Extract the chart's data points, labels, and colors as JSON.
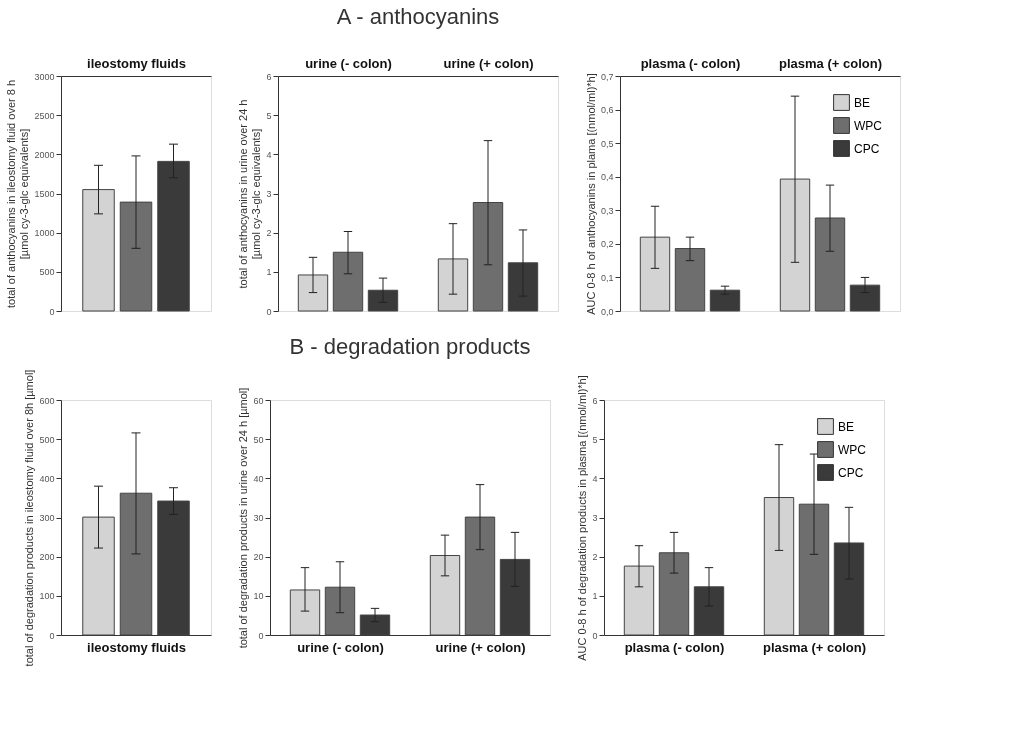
{
  "chart_data": [
    {
      "type": "bar",
      "ylabel": "total of anthocyanins in ileostomy fluid over 8 h\n[µmol cy-3-glc equivalents]",
      "categories": [
        "ileostomy fluids"
      ],
      "ylim": [
        0,
        3000
      ],
      "yticks": [
        0,
        500,
        1000,
        1500,
        2000,
        2500,
        3000
      ],
      "grid": false,
      "legend": false,
      "series": [
        {
          "color": "#d3d3d3",
          "values": [
            1550
          ],
          "errors": [
            [
              1240,
              1860
            ]
          ]
        },
        {
          "color": "#6e6e6e",
          "values": [
            1390
          ],
          "errors": [
            [
              800,
              1980
            ]
          ]
        },
        {
          "color": "#3a3a3a",
          "values": [
            1910
          ],
          "errors": [
            [
              1700,
              2130
            ]
          ]
        }
      ]
    },
    {
      "type": "bar",
      "title": "A - anthocyanins",
      "ylabel": "total of anthocyanins in urine over 24 h\n[µmol cy-3-glc equivalents]",
      "categories": [
        "urine (- colon)",
        "urine (+ colon)"
      ],
      "ylim": [
        0,
        6
      ],
      "yticks": [
        0,
        1,
        2,
        3,
        4,
        5,
        6
      ],
      "grid": false,
      "legend": false,
      "series": [
        {
          "color": "#d3d3d3",
          "values": [
            0.92,
            1.33
          ],
          "errors": [
            [
              0.47,
              1.37
            ],
            [
              0.43,
              2.23
            ]
          ]
        },
        {
          "color": "#6e6e6e",
          "values": [
            1.5,
            2.77
          ],
          "errors": [
            [
              0.95,
              2.03
            ],
            [
              1.18,
              4.35
            ]
          ]
        },
        {
          "color": "#3a3a3a",
          "values": [
            0.53,
            1.23
          ],
          "errors": [
            [
              0.22,
              0.84
            ],
            [
              0.38,
              2.07
            ]
          ]
        }
      ]
    },
    {
      "type": "bar",
      "ylabel": "AUC 0-8 h of anthocyanins in plama [(nmol/ml)*h]",
      "categories": [
        "plasma (- colon)",
        "plasma (+ colon)"
      ],
      "ylim": [
        0,
        0.7
      ],
      "yticks": [
        {
          "value": 0,
          "label": "0,0"
        },
        {
          "value": 0.1,
          "label": "0,1"
        },
        {
          "value": 0.2,
          "label": "0,2"
        },
        {
          "value": 0.3,
          "label": "0,3"
        },
        {
          "value": 0.4,
          "label": "0,4"
        },
        {
          "value": 0.5,
          "label": "0,5"
        },
        {
          "value": 0.6,
          "label": "0,6"
        },
        {
          "value": 0.7,
          "label": "0,7"
        }
      ],
      "grid": false,
      "legend": "top right",
      "series": [
        {
          "name": "BE",
          "color": "#d3d3d3",
          "values": [
            0.22,
            0.393
          ],
          "errors": [
            [
              0.127,
              0.312
            ],
            [
              0.145,
              0.64
            ]
          ]
        },
        {
          "name": "WPC",
          "color": "#6e6e6e",
          "values": [
            0.186,
            0.277
          ],
          "errors": [
            [
              0.15,
              0.22
            ],
            [
              0.178,
              0.375
            ]
          ]
        },
        {
          "name": "CPC",
          "color": "#3a3a3a",
          "values": [
            0.062,
            0.077
          ],
          "errors": [
            [
              0.05,
              0.074
            ],
            [
              0.055,
              0.1
            ]
          ]
        }
      ]
    },
    {
      "type": "bar",
      "ylabel": "total of degradation products in ileostomy fluid over 8h [µmol]",
      "categories": [
        "ileostomy fluids"
      ],
      "ylim": [
        0,
        600
      ],
      "yticks": [
        0,
        100,
        200,
        300,
        400,
        500,
        600
      ],
      "grid": false,
      "legend": false,
      "series": [
        {
          "color": "#d3d3d3",
          "values": [
            301
          ],
          "errors": [
            [
              222,
              380
            ]
          ]
        },
        {
          "color": "#6e6e6e",
          "values": [
            362
          ],
          "errors": [
            [
              207,
              516
            ]
          ]
        },
        {
          "color": "#3a3a3a",
          "values": [
            342
          ],
          "errors": [
            [
              308,
              376
            ]
          ]
        }
      ]
    },
    {
      "type": "bar",
      "title": "B - degradation products",
      "ylabel": "total of degradation products in urine over 24 h [µmol]",
      "categories": [
        "urine (- colon)",
        "urine (+ colon)"
      ],
      "ylim": [
        0,
        60
      ],
      "yticks": [
        0,
        10,
        20,
        30,
        40,
        50,
        60
      ],
      "grid": false,
      "legend": false,
      "series": [
        {
          "color": "#d3d3d3",
          "values": [
            11.5,
            20.3
          ],
          "errors": [
            [
              6.1,
              17.2
            ],
            [
              15.1,
              25.5
            ]
          ]
        },
        {
          "color": "#6e6e6e",
          "values": [
            12.2,
            30.1
          ],
          "errors": [
            [
              5.7,
              18.7
            ],
            [
              21.8,
              38.4
            ]
          ]
        },
        {
          "color": "#3a3a3a",
          "values": [
            5.1,
            19.3
          ],
          "errors": [
            [
              3.4,
              6.8
            ],
            [
              12.4,
              26.2
            ]
          ]
        }
      ]
    },
    {
      "type": "bar",
      "ylabel": "AUC 0-8 h of degradation products in plasma [(nmol/ml)*h]",
      "categories": [
        "plasma (- colon)",
        "plasma (+ colon)"
      ],
      "ylim": [
        0,
        6
      ],
      "yticks": [
        0,
        1,
        2,
        3,
        4,
        5,
        6
      ],
      "grid": false,
      "legend": "top right",
      "series": [
        {
          "name": "BE",
          "color": "#d3d3d3",
          "values": [
            1.76,
            3.51
          ],
          "errors": [
            [
              1.23,
              2.28
            ],
            [
              2.16,
              4.86
            ]
          ]
        },
        {
          "name": "WPC",
          "color": "#6e6e6e",
          "values": [
            2.1,
            3.34
          ],
          "errors": [
            [
              1.58,
              2.62
            ],
            [
              2.06,
              4.62
            ]
          ]
        },
        {
          "name": "CPC",
          "color": "#3a3a3a",
          "values": [
            1.23,
            2.35
          ],
          "errors": [
            [
              0.74,
              1.72
            ],
            [
              1.43,
              3.26
            ]
          ]
        }
      ]
    }
  ]
}
